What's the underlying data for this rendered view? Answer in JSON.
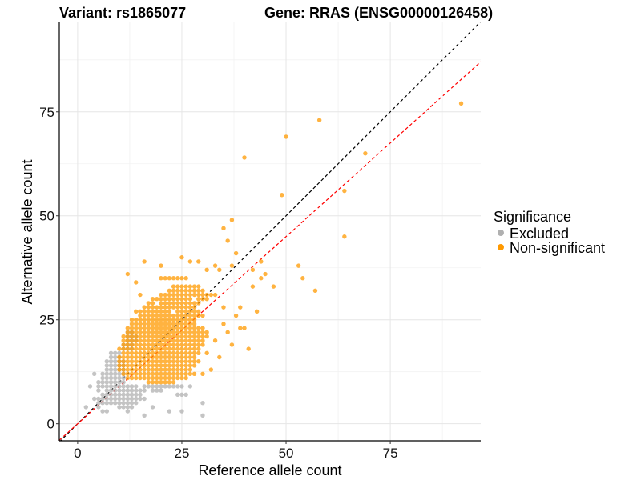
{
  "chart_data": {
    "type": "scatter",
    "title_left": "Variant: rs1865077",
    "title_right": "Gene: RRAS (ENSG00000126458)",
    "xlabel": "Reference allele count",
    "ylabel": "Alternative allele count",
    "xlim": [
      -4.4,
      96.7
    ],
    "ylim": [
      -4.1,
      96.5
    ],
    "xticks": [
      0,
      25,
      50,
      75
    ],
    "yticks": [
      0,
      25,
      50,
      75
    ],
    "minor_grid": [
      12.5,
      37.5,
      62.5,
      87.5
    ],
    "grid": true,
    "legend": {
      "title": "Significance",
      "placement": "right",
      "entries": [
        {
          "label": "Excluded",
          "color": "#b0b0b0"
        },
        {
          "label": "Non-significant",
          "color": "#ff9900"
        }
      ]
    },
    "reference_lines": [
      {
        "name": "identity",
        "slope": 1,
        "intercept": 0,
        "color": "#000000",
        "style": "dashed"
      },
      {
        "name": "fit",
        "slope": 0.9,
        "intercept": 0,
        "color": "#ff0000",
        "style": "dashed"
      }
    ],
    "series": [
      {
        "name": "Excluded",
        "color": "#b0b0b0",
        "rows": [
          [
            2,
            16,
            16
          ],
          [
            3,
            7,
            7
          ],
          [
            3,
            12,
            12
          ],
          [
            4,
            5,
            5
          ],
          [
            4,
            10,
            13
          ],
          [
            5,
            5,
            14
          ],
          [
            6,
            4,
            16
          ],
          [
            7,
            6,
            15
          ],
          [
            7,
            24,
            26
          ],
          [
            8,
            5,
            20
          ],
          [
            9,
            3,
            27
          ],
          [
            10,
            5,
            11
          ],
          [
            11,
            6,
            11
          ],
          [
            12,
            6,
            11
          ],
          [
            13,
            7,
            11
          ],
          [
            14,
            7,
            11
          ],
          [
            15,
            7,
            11
          ],
          [
            16,
            8,
            10
          ],
          [
            17,
            8,
            10
          ],
          [
            18,
            11,
            13
          ],
          [
            19,
            11,
            13
          ],
          [
            20,
            12,
            14
          ],
          [
            21,
            12,
            14
          ],
          [
            22,
            12,
            13
          ]
        ],
        "points": [
          [
            30,
            2
          ],
          [
            30,
            5
          ],
          [
            18,
            4
          ],
          [
            22,
            3
          ],
          [
            25,
            3
          ],
          [
            2,
            4
          ],
          [
            6,
            3
          ],
          [
            4,
            12
          ],
          [
            3,
            9
          ]
        ]
      },
      {
        "name": "Non-significant",
        "color": "#ff9900",
        "rows": [
          [
            10,
            17,
            23
          ],
          [
            11,
            12,
            26
          ],
          [
            12,
            11,
            28
          ],
          [
            13,
            10,
            27
          ],
          [
            14,
            10,
            28
          ],
          [
            15,
            10,
            28
          ],
          [
            16,
            10,
            28
          ],
          [
            17,
            10,
            29
          ],
          [
            18,
            10,
            29
          ],
          [
            19,
            11,
            30
          ],
          [
            20,
            11,
            30
          ],
          [
            21,
            11,
            31
          ],
          [
            22,
            12,
            31
          ],
          [
            23,
            12,
            30
          ],
          [
            24,
            13,
            29
          ],
          [
            25,
            13,
            28
          ],
          [
            26,
            14,
            30
          ],
          [
            27,
            14,
            29
          ],
          [
            28,
            16,
            28
          ],
          [
            29,
            17,
            30
          ],
          [
            30,
            18,
            31
          ],
          [
            31,
            20,
            32
          ],
          [
            32,
            22,
            30
          ],
          [
            33,
            23,
            29
          ],
          [
            35,
            20,
            26
          ]
        ],
        "points": [
          [
            92,
            77
          ],
          [
            58,
            73
          ],
          [
            50,
            69
          ],
          [
            40,
            64
          ],
          [
            69,
            65
          ],
          [
            49,
            55
          ],
          [
            64,
            56
          ],
          [
            64,
            45
          ],
          [
            37,
            49
          ],
          [
            53,
            38
          ],
          [
            54,
            35
          ],
          [
            57,
            32
          ],
          [
            47,
            33
          ],
          [
            44,
            39
          ],
          [
            38,
            41
          ],
          [
            35,
            47
          ],
          [
            36,
            44
          ],
          [
            41,
            18
          ],
          [
            39,
            23
          ],
          [
            40,
            23
          ],
          [
            43,
            27
          ],
          [
            45,
            36
          ],
          [
            42,
            37
          ],
          [
            44,
            35
          ],
          [
            42,
            33
          ],
          [
            37,
            38
          ],
          [
            34,
            37
          ],
          [
            33,
            31
          ],
          [
            35,
            28
          ],
          [
            38,
            26
          ],
          [
            36,
            22
          ],
          [
            33,
            20
          ],
          [
            31,
            17
          ],
          [
            34,
            16
          ],
          [
            29,
            15
          ],
          [
            12,
            36
          ],
          [
            14,
            34
          ],
          [
            15,
            31
          ],
          [
            16,
            39
          ],
          [
            20,
            38
          ],
          [
            25,
            40
          ],
          [
            27,
            39
          ],
          [
            29,
            39
          ],
          [
            31,
            37
          ],
          [
            33,
            38
          ],
          [
            35,
            24
          ],
          [
            37,
            19
          ],
          [
            39,
            28
          ],
          [
            30,
            12
          ],
          [
            32,
            13
          ]
        ]
      }
    ]
  }
}
